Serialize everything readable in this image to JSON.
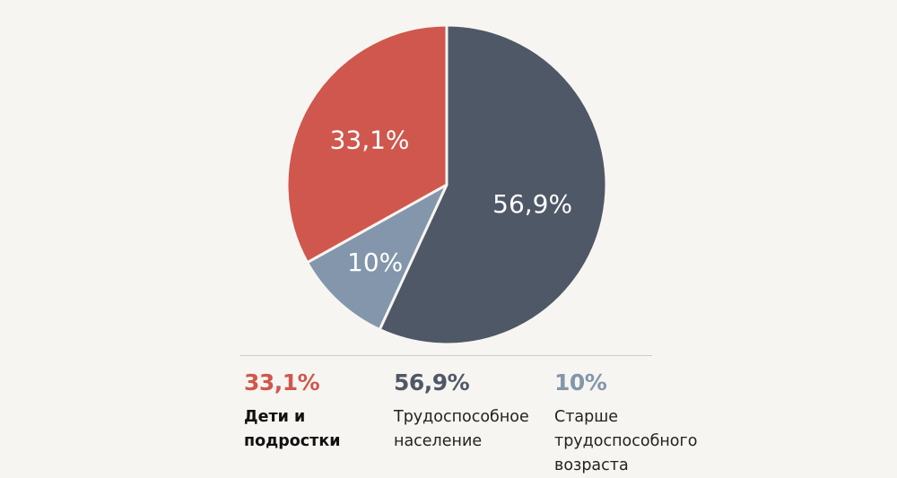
{
  "chart_data": {
    "type": "pie",
    "title": "",
    "slices": [
      {
        "label": "Трудоспособное население",
        "value": 56.9,
        "display": "56,9%",
        "color": "#4f5866"
      },
      {
        "label": "Старше трудоспособного возраста",
        "value": 10,
        "display": "10%",
        "color": "#8396ab"
      },
      {
        "label": "Дети и подростки",
        "value": 33.1,
        "display": "33,1%",
        "color": "#d0574d"
      }
    ],
    "start_angle": "top, clockwise"
  },
  "legend": [
    {
      "pct": "33,1%",
      "line1": "Дети и",
      "line2": "подростки",
      "line3": "",
      "color": "#d0574d"
    },
    {
      "pct": "56,9%",
      "line1": "Трудоспособное",
      "line2": "население",
      "line3": "",
      "color": "#4f5866"
    },
    {
      "pct": "10%",
      "line1": "Старше",
      "line2": "трудоспособного",
      "line3": "возраста",
      "color": "#8396ab"
    }
  ]
}
